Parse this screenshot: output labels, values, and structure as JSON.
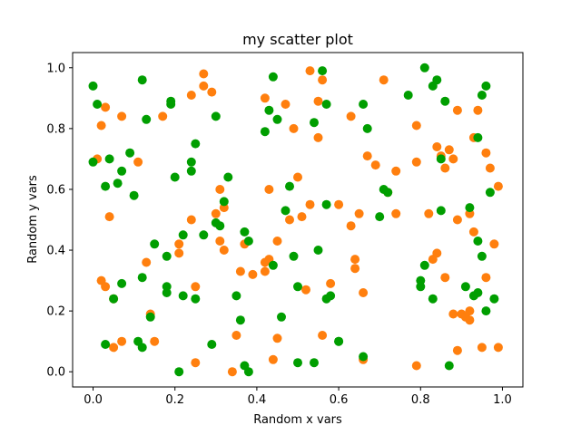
{
  "chart_data": {
    "type": "scatter",
    "title": "my scatter plot",
    "xlabel": "Random x vars",
    "ylabel": "Random y vars",
    "xlim": [
      -0.05,
      1.05
    ],
    "ylim": [
      -0.05,
      1.05
    ],
    "xticks": [
      0.0,
      0.2,
      0.4,
      0.6,
      0.8,
      1.0
    ],
    "yticks": [
      0.0,
      0.2,
      0.4,
      0.6,
      0.8,
      1.0
    ],
    "grid": false,
    "legend": "none",
    "series": [
      {
        "color": "#ff7f0e",
        "points": [
          [
            0.01,
            0.7
          ],
          [
            0.02,
            0.81
          ],
          [
            0.02,
            0.3
          ],
          [
            0.03,
            0.28
          ],
          [
            0.03,
            0.87
          ],
          [
            0.04,
            0.51
          ],
          [
            0.05,
            0.08
          ],
          [
            0.07,
            0.84
          ],
          [
            0.07,
            0.1
          ],
          [
            0.05,
            0.24
          ],
          [
            0.11,
            0.69
          ],
          [
            0.13,
            0.36
          ],
          [
            0.14,
            0.19
          ],
          [
            0.15,
            0.1
          ],
          [
            0.17,
            0.84
          ],
          [
            0.21,
            0.39
          ],
          [
            0.21,
            0.42
          ],
          [
            0.24,
            0.91
          ],
          [
            0.24,
            0.5
          ],
          [
            0.25,
            0.28
          ],
          [
            0.25,
            0.03
          ],
          [
            0.27,
            0.98
          ],
          [
            0.27,
            0.94
          ],
          [
            0.29,
            0.92
          ],
          [
            0.3,
            0.52
          ],
          [
            0.31,
            0.6
          ],
          [
            0.31,
            0.43
          ],
          [
            0.32,
            0.54
          ],
          [
            0.32,
            0.4
          ],
          [
            0.34,
            0.0
          ],
          [
            0.35,
            0.12
          ],
          [
            0.36,
            0.33
          ],
          [
            0.37,
            0.42
          ],
          [
            0.39,
            0.32
          ],
          [
            0.42,
            0.9
          ],
          [
            0.42,
            0.36
          ],
          [
            0.42,
            0.33
          ],
          [
            0.43,
            0.6
          ],
          [
            0.43,
            0.37
          ],
          [
            0.44,
            0.04
          ],
          [
            0.45,
            0.43
          ],
          [
            0.45,
            0.11
          ],
          [
            0.47,
            0.88
          ],
          [
            0.48,
            0.5
          ],
          [
            0.49,
            0.8
          ],
          [
            0.5,
            0.64
          ],
          [
            0.51,
            0.51
          ],
          [
            0.52,
            0.27
          ],
          [
            0.53,
            0.55
          ],
          [
            0.53,
            0.99
          ],
          [
            0.55,
            0.89
          ],
          [
            0.55,
            0.77
          ],
          [
            0.56,
            0.96
          ],
          [
            0.56,
            0.12
          ],
          [
            0.58,
            0.29
          ],
          [
            0.6,
            0.55
          ],
          [
            0.63,
            0.84
          ],
          [
            0.63,
            0.48
          ],
          [
            0.64,
            0.37
          ],
          [
            0.64,
            0.34
          ],
          [
            0.65,
            0.52
          ],
          [
            0.66,
            0.26
          ],
          [
            0.66,
            0.04
          ],
          [
            0.67,
            0.71
          ],
          [
            0.69,
            0.68
          ],
          [
            0.71,
            0.96
          ],
          [
            0.72,
            0.59
          ],
          [
            0.74,
            0.66
          ],
          [
            0.74,
            0.52
          ],
          [
            0.79,
            0.81
          ],
          [
            0.79,
            0.69
          ],
          [
            0.79,
            0.02
          ],
          [
            0.82,
            0.52
          ],
          [
            0.83,
            0.37
          ],
          [
            0.84,
            0.39
          ],
          [
            0.84,
            0.74
          ],
          [
            0.85,
            0.71
          ],
          [
            0.86,
            0.67
          ],
          [
            0.86,
            0.31
          ],
          [
            0.87,
            0.73
          ],
          [
            0.88,
            0.7
          ],
          [
            0.88,
            0.19
          ],
          [
            0.89,
            0.07
          ],
          [
            0.89,
            0.5
          ],
          [
            0.89,
            0.86
          ],
          [
            0.9,
            0.19
          ],
          [
            0.91,
            0.18
          ],
          [
            0.92,
            0.17
          ],
          [
            0.92,
            0.2
          ],
          [
            0.92,
            0.52
          ],
          [
            0.93,
            0.77
          ],
          [
            0.93,
            0.46
          ],
          [
            0.94,
            0.86
          ],
          [
            0.95,
            0.08
          ],
          [
            0.96,
            0.72
          ],
          [
            0.96,
            0.31
          ],
          [
            0.97,
            0.67
          ],
          [
            0.98,
            0.42
          ],
          [
            0.99,
            0.08
          ],
          [
            0.99,
            0.61
          ]
        ]
      },
      {
        "color": "#009e00",
        "points": [
          [
            0.0,
            0.94
          ],
          [
            0.0,
            0.69
          ],
          [
            0.01,
            0.88
          ],
          [
            0.03,
            0.09
          ],
          [
            0.03,
            0.61
          ],
          [
            0.04,
            0.7
          ],
          [
            0.05,
            0.24
          ],
          [
            0.06,
            0.62
          ],
          [
            0.07,
            0.29
          ],
          [
            0.07,
            0.66
          ],
          [
            0.09,
            0.72
          ],
          [
            0.1,
            0.58
          ],
          [
            0.11,
            0.1
          ],
          [
            0.12,
            0.96
          ],
          [
            0.12,
            0.08
          ],
          [
            0.12,
            0.31
          ],
          [
            0.13,
            0.83
          ],
          [
            0.14,
            0.18
          ],
          [
            0.15,
            0.42
          ],
          [
            0.18,
            0.38
          ],
          [
            0.18,
            0.28
          ],
          [
            0.18,
            0.26
          ],
          [
            0.19,
            0.89
          ],
          [
            0.19,
            0.88
          ],
          [
            0.2,
            0.64
          ],
          [
            0.21,
            0.0
          ],
          [
            0.22,
            0.45
          ],
          [
            0.22,
            0.25
          ],
          [
            0.24,
            0.66
          ],
          [
            0.24,
            0.69
          ],
          [
            0.25,
            0.75
          ],
          [
            0.25,
            0.24
          ],
          [
            0.27,
            0.45
          ],
          [
            0.29,
            0.09
          ],
          [
            0.3,
            0.84
          ],
          [
            0.3,
            0.49
          ],
          [
            0.31,
            0.48
          ],
          [
            0.32,
            0.56
          ],
          [
            0.33,
            0.64
          ],
          [
            0.35,
            0.25
          ],
          [
            0.36,
            0.17
          ],
          [
            0.37,
            0.46
          ],
          [
            0.37,
            0.02
          ],
          [
            0.38,
            0.43
          ],
          [
            0.38,
            0.0
          ],
          [
            0.42,
            0.79
          ],
          [
            0.43,
            0.86
          ],
          [
            0.44,
            0.97
          ],
          [
            0.44,
            0.35
          ],
          [
            0.45,
            0.83
          ],
          [
            0.46,
            0.18
          ],
          [
            0.47,
            0.53
          ],
          [
            0.48,
            0.61
          ],
          [
            0.49,
            0.38
          ],
          [
            0.5,
            0.28
          ],
          [
            0.5,
            0.03
          ],
          [
            0.54,
            0.82
          ],
          [
            0.54,
            0.03
          ],
          [
            0.55,
            0.4
          ],
          [
            0.56,
            0.99
          ],
          [
            0.57,
            0.88
          ],
          [
            0.57,
            0.55
          ],
          [
            0.57,
            0.24
          ],
          [
            0.58,
            0.25
          ],
          [
            0.6,
            0.1
          ],
          [
            0.6,
            0.1
          ],
          [
            0.66,
            0.88
          ],
          [
            0.66,
            0.05
          ],
          [
            0.67,
            0.8
          ],
          [
            0.7,
            0.51
          ],
          [
            0.71,
            0.6
          ],
          [
            0.72,
            0.59
          ],
          [
            0.77,
            0.91
          ],
          [
            0.8,
            0.28
          ],
          [
            0.8,
            0.3
          ],
          [
            0.81,
            0.35
          ],
          [
            0.81,
            1.0
          ],
          [
            0.83,
            0.94
          ],
          [
            0.83,
            0.24
          ],
          [
            0.84,
            0.96
          ],
          [
            0.85,
            0.7
          ],
          [
            0.85,
            0.53
          ],
          [
            0.86,
            0.89
          ],
          [
            0.87,
            0.02
          ],
          [
            0.91,
            0.28
          ],
          [
            0.92,
            0.54
          ],
          [
            0.93,
            0.25
          ],
          [
            0.94,
            0.26
          ],
          [
            0.94,
            0.43
          ],
          [
            0.94,
            0.77
          ],
          [
            0.95,
            0.91
          ],
          [
            0.95,
            0.38
          ],
          [
            0.96,
            0.2
          ],
          [
            0.96,
            0.94
          ],
          [
            0.97,
            0.59
          ],
          [
            0.98,
            0.24
          ]
        ]
      }
    ]
  }
}
